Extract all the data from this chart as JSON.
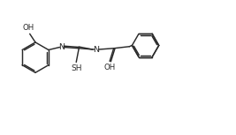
{
  "bg_color": "#ffffff",
  "line_color": "#2a2a2a",
  "figsize": [
    2.67,
    1.53
  ],
  "dpi": 100,
  "xlim": [
    0,
    10
  ],
  "ylim": [
    0,
    6
  ],
  "bond_lw": 1.05,
  "ring_r": 0.68,
  "nap_r": 0.6
}
